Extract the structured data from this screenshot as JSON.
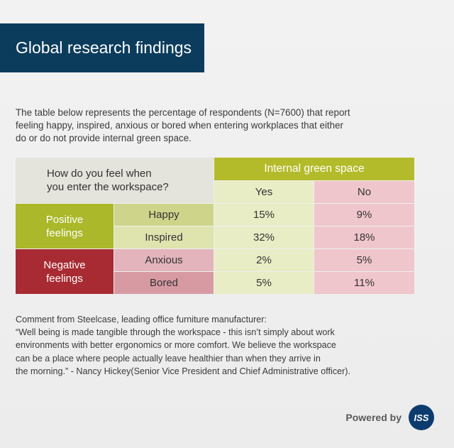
{
  "title": "Global research findings",
  "intro": {
    "line1": "The table below represents the percentage of respondents (N=7600) that report",
    "line2": "feeling happy, inspired, anxious or bored when entering workplaces that either",
    "line3": "do or do not provide internal green space."
  },
  "table": {
    "question_line1": "How do you feel when",
    "question_line2": "you enter the workspace?",
    "green_header": "Internal green space",
    "yes_label": "Yes",
    "no_label": "No",
    "groups": [
      {
        "line1": "Positive",
        "line2": "feelings",
        "color": "#aab82a"
      },
      {
        "line1": "Negative",
        "line2": "feelings",
        "color": "#a82a32"
      }
    ],
    "rows": [
      {
        "feeling": "Happy",
        "yes": "15%",
        "no": "9%"
      },
      {
        "feeling": "Inspired",
        "yes": "32%",
        "no": "18%"
      },
      {
        "feeling": "Anxious",
        "yes": "2%",
        "no": "5%"
      },
      {
        "feeling": "Bored",
        "yes": "5%",
        "no": "11%"
      }
    ]
  },
  "comment": {
    "line1": "Comment from Steelcase, leading office furniture manufacturer:",
    "line2": "“Well being is made tangible through the workspace - this isn’t simply about work",
    "line3": "environments with better ergonomics or more comfort. We believe the workspace",
    "line4": "can be a place where people actually leave healthier than when they arrive in",
    "line5": "the morning.” - Nancy Hickey(Senior Vice President and Chief Administrative officer)."
  },
  "footer": {
    "powered_by": "Powered by",
    "logo_text": "ISS"
  },
  "colors": {
    "banner": "#0c3c5c",
    "green": "#b4bb2a",
    "red": "#a82a32"
  }
}
